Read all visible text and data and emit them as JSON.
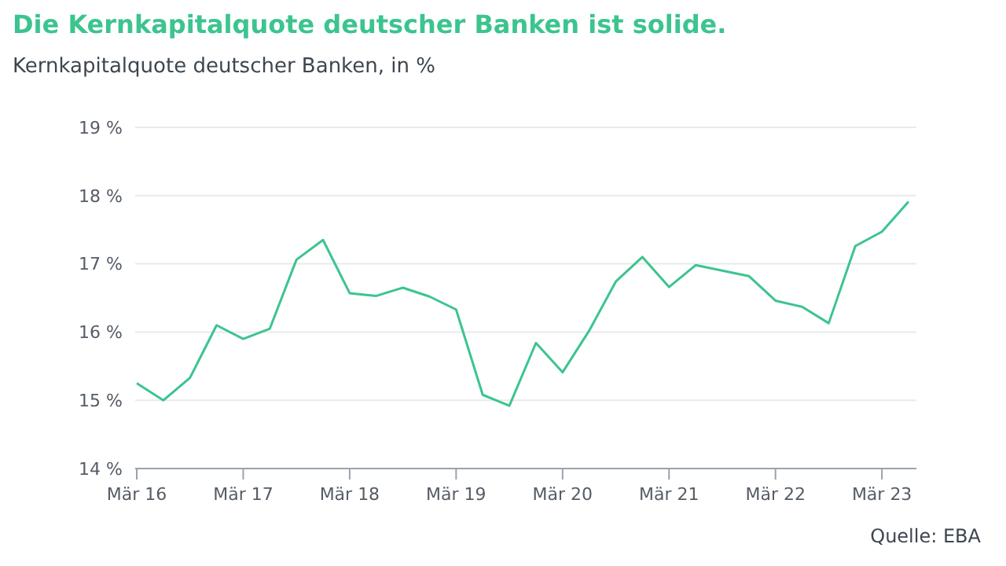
{
  "chart_data": {
    "type": "line",
    "title": "Die Kernkapitalquote deutscher Banken ist solide.",
    "subtitle": "Kernkapitalquote deutscher Banken, in %",
    "annotations": [
      "Quelle: EBA"
    ],
    "categories": [
      "Mär 16",
      null,
      null,
      null,
      "Mär 17",
      null,
      null,
      null,
      "Mär 18",
      null,
      null,
      null,
      "Mär 19",
      null,
      null,
      null,
      "Mär 20",
      null,
      null,
      null,
      "Mär 21",
      null,
      null,
      null,
      "Mär 22",
      null,
      null,
      null,
      "Mär 23",
      null
    ],
    "series": [
      {
        "color": "#3cc48f",
        "values": [
          15.25,
          15.0,
          15.33,
          16.1,
          15.9,
          16.05,
          17.06,
          17.35,
          16.57,
          16.53,
          16.65,
          16.52,
          16.33,
          15.08,
          14.92,
          15.84,
          15.41,
          16.02,
          16.74,
          17.1,
          16.66,
          16.98,
          16.9,
          16.82,
          16.46,
          16.37,
          16.13,
          17.26,
          17.47,
          17.91
        ]
      }
    ],
    "ylim": [
      14,
      19
    ],
    "yticks": [
      {
        "value": 14,
        "label": "14 %"
      },
      {
        "value": 15,
        "label": "15 %"
      },
      {
        "value": 16,
        "label": "16 %"
      },
      {
        "value": 17,
        "label": "17 %"
      },
      {
        "value": 18,
        "label": "18 %"
      },
      {
        "value": 19,
        "label": "19 %"
      }
    ],
    "grid": "y",
    "legend": false,
    "marker": "none",
    "line_style": "solid"
  }
}
